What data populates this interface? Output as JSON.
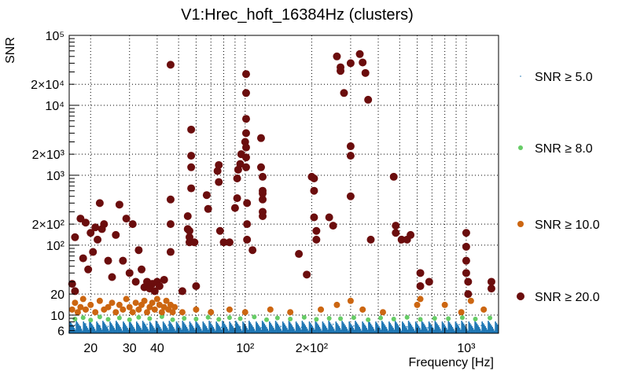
{
  "chart_data": {
    "type": "scatter",
    "title": "V1:Hrec_hoft_16384Hz (clusters)",
    "xlabel": "Frequency [Hz]",
    "ylabel": "SNR",
    "x_scale": "log",
    "y_scale": "log",
    "xlim": [
      16,
      1400
    ],
    "ylim": [
      5.5,
      100000
    ],
    "grid": true,
    "legend_position": "right",
    "x_tick_labels": [
      {
        "value": 20,
        "label": "20"
      },
      {
        "value": 30,
        "label": "30"
      },
      {
        "value": 40,
        "label": "40"
      },
      {
        "value": 100,
        "label": "10²"
      },
      {
        "value": 200,
        "label": "2×10²"
      },
      {
        "value": 1000,
        "label": "10³"
      }
    ],
    "y_tick_labels": [
      {
        "value": 6,
        "label": "6"
      },
      {
        "value": 10,
        "label": "10"
      },
      {
        "value": 20,
        "label": "20"
      },
      {
        "value": 100,
        "label": "10²"
      },
      {
        "value": 200,
        "label": "2×10²"
      },
      {
        "value": 1000,
        "label": "10³"
      },
      {
        "value": 2000,
        "label": "2×10³"
      },
      {
        "value": 10000,
        "label": "10⁴"
      },
      {
        "value": 20000,
        "label": "2×10⁴"
      },
      {
        "value": 100000,
        "label": "10⁵"
      }
    ],
    "series": [
      {
        "name": "SNR ≥ 5.0",
        "color": "#1f77b4",
        "marker": "dot",
        "points": [
          [
            17,
            7.2
          ],
          [
            18,
            6.8
          ],
          [
            19,
            7.5
          ],
          [
            20,
            6.5
          ],
          [
            22,
            7.0
          ],
          [
            24,
            6.9
          ],
          [
            26,
            7.3
          ],
          [
            28,
            6.6
          ],
          [
            30,
            7.1
          ],
          [
            33,
            6.7
          ],
          [
            36,
            7.4
          ],
          [
            40,
            6.8
          ],
          [
            45,
            7.2
          ],
          [
            50,
            6.6
          ],
          [
            56,
            7.0
          ],
          [
            62,
            6.9
          ],
          [
            70,
            7.3
          ],
          [
            78,
            6.7
          ],
          [
            86,
            7.1
          ],
          [
            95,
            6.8
          ],
          [
            105,
            7.5
          ],
          [
            118,
            6.6
          ],
          [
            130,
            7.0
          ],
          [
            145,
            6.9
          ],
          [
            160,
            7.2
          ],
          [
            180,
            6.7
          ],
          [
            200,
            7.1
          ],
          [
            225,
            6.8
          ],
          [
            250,
            7.4
          ],
          [
            280,
            6.6
          ],
          [
            310,
            7.0
          ],
          [
            350,
            6.9
          ],
          [
            390,
            7.3
          ],
          [
            430,
            6.7
          ],
          [
            480,
            7.1
          ],
          [
            540,
            6.8
          ],
          [
            600,
            7.2
          ],
          [
            670,
            6.6
          ],
          [
            750,
            7.0
          ],
          [
            840,
            6.9
          ],
          [
            930,
            7.3
          ],
          [
            1050,
            6.7
          ],
          [
            1170,
            7.1
          ],
          [
            1300,
            6.8
          ]
        ]
      },
      {
        "name": "SNR ≥ 8.0",
        "color": "#66cc66",
        "marker": "circle",
        "points": [
          [
            17,
            8.8
          ],
          [
            18.5,
            9.2
          ],
          [
            20,
            8.5
          ],
          [
            22,
            9.4
          ],
          [
            24,
            8.7
          ],
          [
            27,
            9.1
          ],
          [
            30,
            8.6
          ],
          [
            33,
            9.3
          ],
          [
            37,
            8.9
          ],
          [
            42,
            9.5
          ],
          [
            47,
            8.6
          ],
          [
            53,
            9.0
          ],
          [
            60,
            8.8
          ],
          [
            68,
            9.3
          ],
          [
            76,
            8.7
          ],
          [
            85,
            9.2
          ],
          [
            95,
            8.9
          ],
          [
            110,
            9.4
          ],
          [
            125,
            8.6
          ],
          [
            140,
            9.1
          ],
          [
            160,
            8.8
          ],
          [
            185,
            9.3
          ],
          [
            210,
            8.7
          ],
          [
            240,
            9.0
          ],
          [
            270,
            8.9
          ],
          [
            310,
            9.2
          ],
          [
            360,
            8.6
          ],
          [
            410,
            9.1
          ],
          [
            470,
            8.8
          ],
          [
            540,
            9.3
          ],
          [
            620,
            8.7
          ],
          [
            720,
            9.0
          ],
          [
            830,
            8.9
          ],
          [
            960,
            9.2
          ],
          [
            1100,
            8.8
          ],
          [
            1280,
            9.1
          ]
        ]
      },
      {
        "name": "SNR ≥ 10.0",
        "color": "#cc6611",
        "marker": "circle",
        "points": [
          [
            16.5,
            12
          ],
          [
            17,
            15
          ],
          [
            17.5,
            11
          ],
          [
            18,
            13
          ],
          [
            18.5,
            17
          ],
          [
            19,
            12
          ],
          [
            20,
            14
          ],
          [
            21,
            11
          ],
          [
            22,
            16
          ],
          [
            23,
            12
          ],
          [
            24,
            13
          ],
          [
            25,
            15
          ],
          [
            26,
            11
          ],
          [
            27,
            14
          ],
          [
            28,
            12
          ],
          [
            29,
            17
          ],
          [
            30,
            13
          ],
          [
            31,
            11
          ],
          [
            32,
            15
          ],
          [
            33,
            12
          ],
          [
            34,
            14
          ],
          [
            35,
            16
          ],
          [
            36,
            11
          ],
          [
            37,
            13
          ],
          [
            38,
            15
          ],
          [
            39,
            12
          ],
          [
            40,
            17
          ],
          [
            41,
            14
          ],
          [
            42,
            11
          ],
          [
            43,
            13
          ],
          [
            44,
            16
          ],
          [
            45,
            12
          ],
          [
            46,
            14
          ],
          [
            47,
            11
          ],
          [
            48,
            13
          ],
          [
            52,
            11
          ],
          [
            60,
            12
          ],
          [
            70,
            11
          ],
          [
            85,
            12
          ],
          [
            100,
            11
          ],
          [
            130,
            12
          ],
          [
            160,
            11
          ],
          [
            220,
            12
          ],
          [
            260,
            14
          ],
          [
            300,
            16
          ],
          [
            340,
            12
          ],
          [
            420,
            11
          ],
          [
            600,
            14
          ],
          [
            620,
            17
          ],
          [
            800,
            14
          ],
          [
            950,
            11
          ],
          [
            1050,
            16
          ],
          [
            1200,
            12
          ]
        ]
      },
      {
        "name": "SNR ≥ 20.0",
        "color": "#6b0d0d",
        "marker": "circle",
        "points": [
          [
            16.5,
            28
          ],
          [
            17,
            22
          ],
          [
            17,
            130
          ],
          [
            18,
            240
          ],
          [
            18.5,
            65
          ],
          [
            19,
            210
          ],
          [
            19.5,
            45
          ],
          [
            20,
            150
          ],
          [
            20.5,
            80
          ],
          [
            21,
            180
          ],
          [
            21.5,
            120
          ],
          [
            22,
            400
          ],
          [
            22.5,
            170
          ],
          [
            23,
            200
          ],
          [
            24,
            60
          ],
          [
            25,
            35
          ],
          [
            26,
            140
          ],
          [
            27,
            380
          ],
          [
            28,
            60
          ],
          [
            29,
            240
          ],
          [
            30,
            40
          ],
          [
            31,
            200
          ],
          [
            32,
            30
          ],
          [
            33,
            85
          ],
          [
            34,
            45
          ],
          [
            35,
            25
          ],
          [
            36,
            30
          ],
          [
            37,
            24
          ],
          [
            38,
            28
          ],
          [
            39,
            22
          ],
          [
            40,
            30
          ],
          [
            41,
            26
          ],
          [
            43,
            32
          ],
          [
            46,
            38000
          ],
          [
            46,
            200
          ],
          [
            46,
            450
          ],
          [
            46,
            80
          ],
          [
            52,
            22
          ],
          [
            55,
            260
          ],
          [
            55,
            170
          ],
          [
            56,
            130
          ],
          [
            56,
            110
          ],
          [
            56,
            160
          ],
          [
            57,
            650
          ],
          [
            57,
            1300
          ],
          [
            57,
            1900
          ],
          [
            57,
            4500
          ],
          [
            59,
            110
          ],
          [
            60,
            26
          ],
          [
            67,
            520
          ],
          [
            68,
            330
          ],
          [
            75,
            1150
          ],
          [
            76,
            800
          ],
          [
            76,
            1400
          ],
          [
            77,
            160
          ],
          [
            80,
            110
          ],
          [
            85,
            110
          ],
          [
            90,
            340
          ],
          [
            92,
            470
          ],
          [
            92,
            900
          ],
          [
            93,
            1200
          ],
          [
            95,
            1450
          ],
          [
            96,
            2000
          ],
          [
            100,
            3000
          ],
          [
            101,
            6400
          ],
          [
            101,
            4000
          ],
          [
            101,
            15000
          ],
          [
            101,
            28000
          ],
          [
            101,
            2500
          ],
          [
            101,
            1800
          ],
          [
            101,
            1300
          ],
          [
            102,
            400
          ],
          [
            102,
            200
          ],
          [
            102,
            120
          ],
          [
            108,
            85
          ],
          [
            118,
            3400
          ],
          [
            118,
            1300
          ],
          [
            120,
            950
          ],
          [
            120,
            600
          ],
          [
            120,
            550
          ],
          [
            120,
            450
          ],
          [
            120,
            300
          ],
          [
            120,
            260
          ],
          [
            175,
            75
          ],
          [
            190,
            38
          ],
          [
            200,
            950
          ],
          [
            205,
            900
          ],
          [
            205,
            600
          ],
          [
            205,
            250
          ],
          [
            210,
            160
          ],
          [
            210,
            120
          ],
          [
            240,
            250
          ],
          [
            250,
            190
          ],
          [
            260,
            50000
          ],
          [
            270,
            35000
          ],
          [
            270,
            31000
          ],
          [
            280,
            15000
          ],
          [
            300,
            40000
          ],
          [
            300,
            2600
          ],
          [
            300,
            1900
          ],
          [
            300,
            500
          ],
          [
            330,
            54000
          ],
          [
            340,
            41000
          ],
          [
            350,
            29000
          ],
          [
            360,
            12000
          ],
          [
            370,
            120
          ],
          [
            470,
            950
          ],
          [
            480,
            190
          ],
          [
            480,
            150
          ],
          [
            510,
            120
          ],
          [
            540,
            120
          ],
          [
            560,
            140
          ],
          [
            620,
            40
          ],
          [
            620,
            26
          ],
          [
            680,
            30
          ],
          [
            1000,
            150
          ],
          [
            1000,
            95
          ],
          [
            1000,
            60
          ],
          [
            1000,
            40
          ],
          [
            1020,
            30
          ],
          [
            1020,
            20
          ],
          [
            1300,
            30
          ],
          [
            1300,
            24
          ]
        ]
      }
    ]
  }
}
